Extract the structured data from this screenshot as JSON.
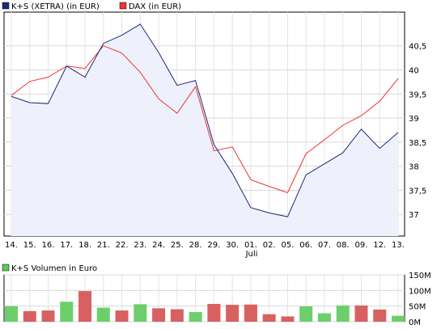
{
  "chart_data": [
    {
      "type": "line",
      "x": [
        "14.",
        "15.",
        "16.",
        "17.",
        "18.",
        "21.",
        "22.",
        "23.",
        "24.",
        "25.",
        "28.",
        "29.",
        "30.",
        "01.",
        "02.",
        "05.",
        "06.",
        "07.",
        "08.",
        "09.",
        "12.",
        "13."
      ],
      "month_label": "Juli",
      "series": [
        {
          "name": "K+S (XETRA) (in EUR)",
          "color": "#1a2a7a",
          "fill": "#eef1fb",
          "values": [
            39.45,
            39.32,
            39.3,
            40.08,
            39.85,
            40.55,
            40.72,
            40.95,
            40.36,
            39.68,
            39.78,
            38.45,
            37.85,
            37.14,
            37.03,
            36.95,
            37.82,
            38.05,
            38.28,
            38.77,
            38.37,
            38.7
          ]
        },
        {
          "name": "DAX (in EUR)",
          "color": "#ee3333",
          "values": [
            39.47,
            39.76,
            39.85,
            40.08,
            40.03,
            40.5,
            40.35,
            39.95,
            39.4,
            39.1,
            39.65,
            38.32,
            38.4,
            37.72,
            37.58,
            37.45,
            38.26,
            38.55,
            38.85,
            39.05,
            39.35,
            39.82
          ]
        }
      ],
      "y_ticks": [
        "40,5",
        "40",
        "39,5",
        "39",
        "38,5",
        "38",
        "37,5",
        "37"
      ],
      "ylim": [
        36.55,
        41.2
      ],
      "grid": true
    },
    {
      "type": "bar",
      "title": "K+S Volumen in Euro",
      "legend_color": "#55cc55",
      "values": [
        50,
        34,
        36,
        64,
        98,
        45,
        36,
        56,
        43,
        40,
        31,
        57,
        54,
        55,
        24,
        17,
        49,
        27,
        52,
        52,
        39,
        19
      ],
      "colors": [
        "green",
        "red",
        "red",
        "green",
        "red",
        "green",
        "red",
        "green",
        "red",
        "red",
        "green",
        "red",
        "red",
        "red",
        "red",
        "red",
        "green",
        "green",
        "green",
        "red",
        "red",
        "green"
      ],
      "y_ticks": [
        "150M",
        "100M",
        "50M",
        "0M"
      ],
      "ylim": [
        0,
        150
      ]
    }
  ]
}
